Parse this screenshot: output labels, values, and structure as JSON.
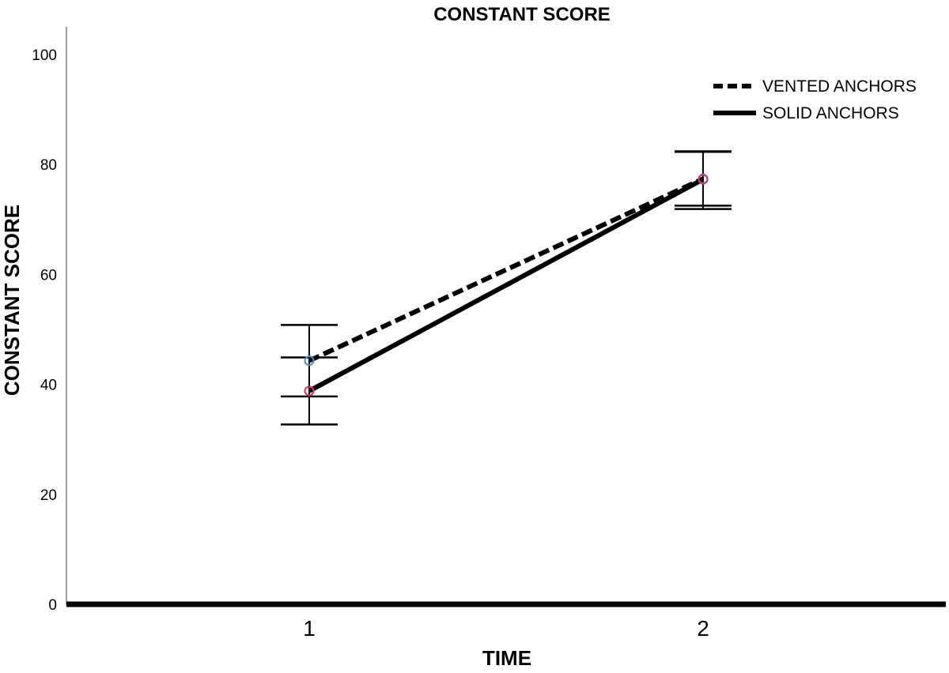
{
  "chart_data": {
    "type": "line",
    "title": "CONSTANT SCORE",
    "xlabel": "TIME",
    "ylabel": "CONSTANT SCORE",
    "categories": [
      "1",
      "2"
    ],
    "y_ticks": [
      "0",
      "20",
      "40",
      "60",
      "80",
      "100"
    ],
    "ylim": [
      0,
      105
    ],
    "grid": false,
    "legend_position": "top-right",
    "series": [
      {
        "name": "VENTED ANCHORS",
        "style": "dashed",
        "marker_color": "#4a90d9",
        "values": [
          44.3,
          77.4
        ],
        "error_low": [
          37.8,
          72.5
        ],
        "error_high": [
          50.8,
          82.3
        ]
      },
      {
        "name": "SOLID ANCHORS",
        "style": "solid",
        "marker_color": "#d6336c",
        "values": [
          38.8,
          77.3
        ],
        "error_low": [
          32.7,
          71.9
        ],
        "error_high": [
          44.9,
          82.4
        ]
      }
    ]
  }
}
